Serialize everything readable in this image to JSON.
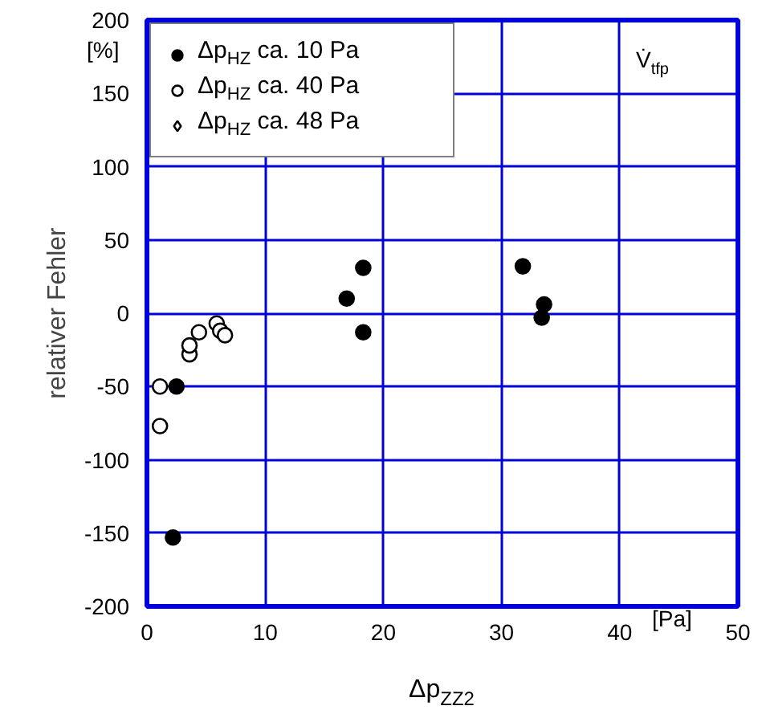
{
  "chart_data": {
    "type": "scatter",
    "xlabel": "Δp$_{ZZ2}$",
    "ylabel": "relativer Fehler",
    "annotations": [
      "[%]",
      "[Pa]",
      "V̇$_{tfp}$"
    ],
    "xlim": [
      0,
      50
    ],
    "xticks": [
      0,
      10,
      20,
      30,
      40,
      50
    ],
    "ylim": [
      -200,
      200
    ],
    "yticks": [
      -200,
      -150,
      -100,
      -50,
      0,
      50,
      100,
      150,
      200
    ],
    "grid": true,
    "legend": "top left",
    "series": [
      {
        "name": "Δp$_{HZ}$ ca. 10 Pa",
        "color": "#000000",
        "marker": "circle",
        "x": [
          2.5,
          2.2,
          18.3,
          16.9,
          18.3,
          31.8,
          33.6,
          33.4
        ],
        "values": [
          -50,
          -153,
          31,
          10,
          -13,
          32,
          6,
          -3
        ]
      },
      {
        "name": "Δp$_{HZ}$ ca. 40 Pa",
        "color": "#ffffff",
        "marker": "circle",
        "x": [
          1.1,
          1.1,
          3.6,
          3.6,
          4.4,
          5.9,
          6.2,
          6.6
        ],
        "values": [
          -50,
          -77,
          -28,
          -22,
          -13,
          -7,
          -12,
          -15
        ]
      },
      {
        "name": "Δp$_{HZ}$ ca. 48 Pa",
        "color": "#ffffff",
        "marker": "diamond"
      }
    ]
  }
}
